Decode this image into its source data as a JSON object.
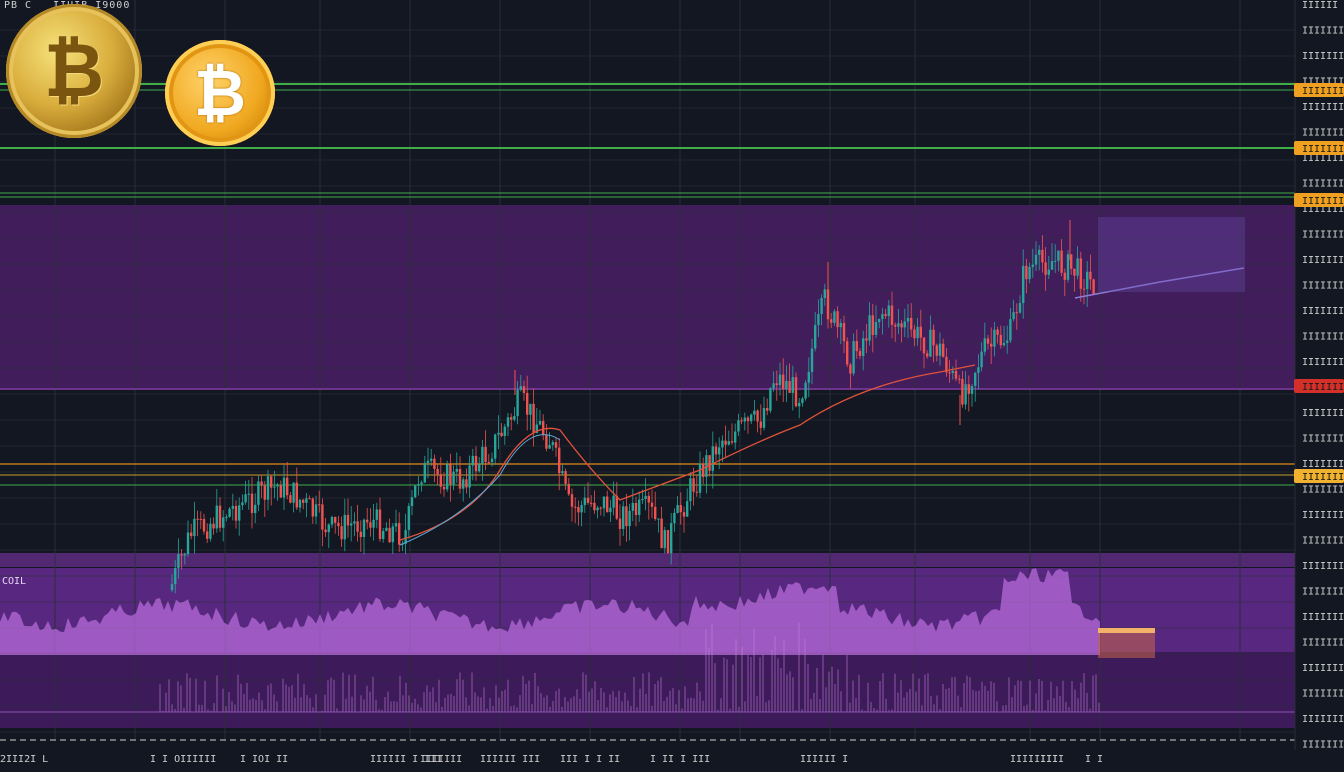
{
  "header": {
    "symbol": "PB C",
    "interval": "IIUIB",
    "ohlc": "IIUIB I9000"
  },
  "indicator": {
    "label": "COIL"
  },
  "colors": {
    "background": "#131722",
    "purple_band": "#4a1f66",
    "green_line": "#3fae49",
    "orange_line": "#e08a1a",
    "candle_up": "#26a69a",
    "candle_down": "#ef5350",
    "ma_line": "#e0533a",
    "volume": "#b66bd8"
  },
  "price_axis": {
    "labels": [
      "IIIIII",
      "IIIIIII",
      "IIIIIII",
      "IIIIIII",
      "IIIIIII",
      "IIIIIII",
      "IIIIIII",
      "IIIIIII",
      "IIIIIII",
      "IIIIIII",
      "IIIIIII",
      "IIIIIII",
      "IIIIIII",
      "IIIIIII",
      "IIIIIII",
      "IIIIIII",
      "IIIIIII",
      "IIIIIII",
      "IIIIIII",
      "IIIIIII",
      "IIIIIII",
      "IIIIIII",
      "IIIIIII",
      "IIIIIII",
      "IIIIIII",
      "IIIIIII",
      "IIIIIII",
      "IIIIIII",
      "IIIIIII",
      "IIIIIII"
    ],
    "badges": [
      {
        "text": "IIIIIIII",
        "color": "#f0a020"
      },
      {
        "text": "IIIIIIII",
        "color": "#f0a020"
      },
      {
        "text": "IIIIIIII",
        "color": "#f0a020"
      },
      {
        "text": "IIIIIIII",
        "color": "#d3302a"
      },
      {
        "text": "IIIIIIII",
        "color": "#f0b030"
      }
    ]
  },
  "time_axis": {
    "labels": [
      "2III2I L",
      "I I OIIIIII",
      "I IOI II",
      "IIIIII I III",
      "IIIIIII",
      "IIIIII III",
      "III I I II",
      "I II I III",
      "IIIIII I",
      "IIIIIIII",
      "IIII",
      "I I"
    ]
  },
  "icons": [
    "bitcoin-coin-icon",
    "bitcoin-coin-icon"
  ]
}
